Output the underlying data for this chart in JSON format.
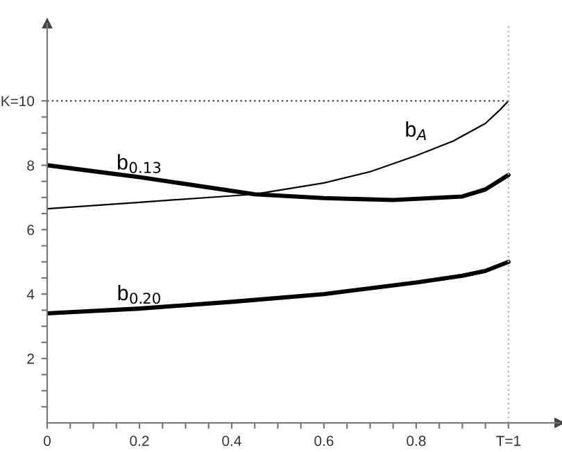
{
  "chart_data": {
    "type": "line",
    "series": [
      {
        "name": "b$_{A}$",
        "color": "#000000",
        "x": [
          0,
          0.2,
          0.4,
          0.45,
          0.6,
          0.7,
          0.8,
          0.88,
          0.95,
          0.98,
          1.0
        ],
        "values": [
          6.65,
          6.85,
          7.05,
          7.1,
          7.45,
          7.8,
          8.3,
          8.75,
          9.3,
          9.7,
          10
        ]
      },
      {
        "name": "b$_{0.13}$",
        "color": "#000000",
        "x": [
          0,
          0.2,
          0.45,
          0.6,
          0.75,
          0.9,
          0.95,
          1.0
        ],
        "values": [
          8.0,
          7.63,
          7.1,
          6.98,
          6.92,
          7.03,
          7.25,
          7.7
        ]
      },
      {
        "name": "b$_{0.20}$",
        "color": "#000000",
        "x": [
          0,
          0.2,
          0.4,
          0.6,
          0.8,
          0.9,
          0.95,
          1.0
        ],
        "values": [
          3.4,
          3.55,
          3.76,
          4.0,
          4.36,
          4.57,
          4.72,
          5.0
        ]
      }
    ],
    "xlim": [
      0,
      1.11
    ],
    "ylim": [
      0,
      12.4
    ],
    "xticks": [
      0,
      {
        "value": 0.05,
        "label": null
      },
      {
        "value": 0.1,
        "label": null
      },
      {
        "value": 0.15,
        "label": null
      },
      0.2,
      {
        "value": 0.25,
        "label": null
      },
      {
        "value": 0.3,
        "label": null
      },
      {
        "value": 0.35,
        "label": null
      },
      0.4,
      {
        "value": 0.45,
        "label": null
      },
      {
        "value": 0.5,
        "label": null
      },
      {
        "value": 0.55,
        "label": null
      },
      0.6,
      {
        "value": 0.65,
        "label": null
      },
      {
        "value": 0.7,
        "label": null
      },
      {
        "value": 0.75,
        "label": null
      },
      0.8,
      {
        "value": 0.85,
        "label": null
      },
      {
        "value": 0.9,
        "label": null
      },
      {
        "value": 0.95,
        "label": null
      },
      {
        "value": 1,
        "label": "T=1"
      }
    ],
    "yticks": [
      {
        "value": 0.5,
        "label": null
      },
      {
        "value": 1,
        "label": null
      },
      {
        "value": 1.5,
        "label": null
      },
      2,
      {
        "value": 2.5,
        "label": null
      },
      {
        "value": 3,
        "label": null
      },
      {
        "value": 3.5,
        "label": null
      },
      4,
      {
        "value": 4.5,
        "label": null
      },
      {
        "value": 5,
        "label": null
      },
      {
        "value": 5.5,
        "label": null
      },
      6,
      {
        "value": 6.5,
        "label": null
      },
      {
        "value": 7,
        "label": null
      },
      {
        "value": 7.5,
        "label": null
      },
      8,
      {
        "value": 8.5,
        "label": null
      },
      {
        "value": 9,
        "label": null
      },
      {
        "value": 9.5,
        "label": null
      },
      {
        "value": 10,
        "label": "K=10"
      }
    ],
    "ref_lines": [
      {
        "axis": "y",
        "value": 10,
        "label": null,
        "color": "#555555",
        "line_style": "dotted"
      },
      {
        "axis": "x",
        "value": 1,
        "label": null,
        "color": "#bbbbbb",
        "line_style": "dotted"
      }
    ],
    "grid": false,
    "legend": false,
    "line_style": "solid",
    "marker": "none"
  }
}
